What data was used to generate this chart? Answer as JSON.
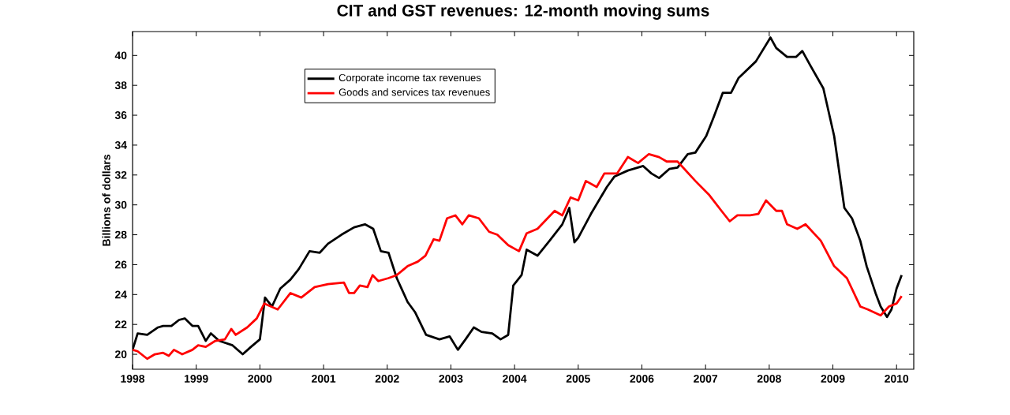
{
  "chart_data": {
    "type": "line",
    "title": "CIT and GST revenues: 12-month moving sums",
    "ylabel": "Billions of dollars",
    "xlim": [
      1998,
      2010.27
    ],
    "ylim": [
      19,
      41.6
    ],
    "xticks": [
      1998,
      1999,
      2000,
      2001,
      2002,
      2003,
      2004,
      2005,
      2006,
      2007,
      2008,
      2009,
      2010
    ],
    "yticks": [
      20,
      22,
      24,
      26,
      28,
      30,
      32,
      34,
      36,
      38,
      40
    ],
    "grid": false,
    "legend": "top left",
    "marker": "none",
    "line_style": "solid",
    "series": [
      {
        "name": "Corporate income tax revenues",
        "color": "#000000",
        "x": [
          1998.0,
          1998.08,
          1998.23,
          1998.4,
          1998.48,
          1998.61,
          1998.73,
          1998.82,
          1998.94,
          1999.03,
          1999.15,
          1999.23,
          1999.36,
          1999.57,
          1999.73,
          1999.86,
          2000.0,
          2000.08,
          2000.19,
          2000.32,
          2000.48,
          2000.61,
          2000.78,
          2000.94,
          2001.07,
          2001.28,
          2001.48,
          2001.65,
          2001.78,
          2001.9,
          2002.02,
          2002.15,
          2002.32,
          2002.44,
          2002.61,
          2002.82,
          2002.98,
          2003.11,
          2003.23,
          2003.36,
          2003.48,
          2003.65,
          2003.78,
          2003.9,
          2003.98,
          2004.11,
          2004.19,
          2004.36,
          2004.55,
          2004.75,
          2004.86,
          2004.94,
          2005.0,
          2005.2,
          2005.45,
          2005.57,
          2005.78,
          2006.02,
          2006.15,
          2006.27,
          2006.43,
          2006.56,
          2006.72,
          2006.84,
          2007.01,
          2007.13,
          2007.27,
          2007.4,
          2007.52,
          2007.79,
          2008.02,
          2008.11,
          2008.28,
          2008.42,
          2008.52,
          2008.65,
          2008.85,
          2009.02,
          2009.18,
          2009.3,
          2009.43,
          2009.53,
          2009.67,
          2009.75,
          2009.85,
          2009.92,
          2010.0,
          2010.08
        ],
        "values": [
          20.3,
          21.4,
          21.3,
          21.8,
          21.9,
          21.9,
          22.3,
          22.4,
          21.9,
          21.9,
          20.9,
          21.4,
          20.9,
          20.6,
          20.0,
          20.5,
          21.0,
          23.8,
          23.2,
          24.4,
          25.0,
          25.7,
          26.9,
          26.8,
          27.4,
          28.0,
          28.5,
          28.7,
          28.4,
          26.9,
          26.8,
          25.1,
          23.5,
          22.8,
          21.3,
          21.0,
          21.2,
          20.3,
          21.0,
          21.8,
          21.5,
          21.4,
          21.0,
          21.3,
          24.6,
          25.3,
          27.0,
          26.6,
          27.6,
          28.7,
          29.8,
          27.5,
          27.8,
          29.4,
          31.2,
          31.9,
          32.3,
          32.6,
          32.1,
          31.8,
          32.4,
          32.5,
          33.4,
          33.5,
          34.6,
          35.9,
          37.5,
          37.5,
          38.5,
          39.6,
          41.2,
          40.5,
          39.9,
          39.9,
          40.3,
          39.3,
          37.8,
          34.6,
          29.8,
          29.1,
          27.6,
          25.9,
          24.1,
          23.2,
          22.5,
          23.0,
          24.4,
          25.3
        ]
      },
      {
        "name": "Goods and services tax revenues",
        "color": "#ff0000",
        "x": [
          1998.0,
          1998.08,
          1998.23,
          1998.35,
          1998.48,
          1998.57,
          1998.65,
          1998.78,
          1998.94,
          1999.03,
          1999.15,
          1999.3,
          1999.45,
          1999.55,
          1999.62,
          1999.8,
          1999.95,
          2000.07,
          2000.28,
          2000.48,
          2000.65,
          2000.86,
          2001.07,
          2001.32,
          2001.4,
          2001.48,
          2001.57,
          2001.69,
          2001.77,
          2001.86,
          2002.02,
          2002.15,
          2002.32,
          2002.48,
          2002.6,
          2002.73,
          2002.82,
          2002.94,
          2003.07,
          2003.18,
          2003.28,
          2003.44,
          2003.6,
          2003.73,
          2003.9,
          2004.07,
          2004.19,
          2004.36,
          2004.63,
          2004.75,
          2004.88,
          2005.0,
          2005.12,
          2005.29,
          2005.41,
          2005.61,
          2005.78,
          2005.94,
          2006.11,
          2006.27,
          2006.39,
          2006.56,
          2006.84,
          2007.05,
          2007.25,
          2007.38,
          2007.5,
          2007.7,
          2007.83,
          2007.95,
          2008.11,
          2008.2,
          2008.28,
          2008.44,
          2008.57,
          2008.81,
          2009.02,
          2009.22,
          2009.43,
          2009.55,
          2009.75,
          2009.88,
          2010.0,
          2010.08
        ],
        "values": [
          20.3,
          20.2,
          19.7,
          20.0,
          20.1,
          19.9,
          20.3,
          20.0,
          20.3,
          20.6,
          20.5,
          20.9,
          21.0,
          21.7,
          21.3,
          21.8,
          22.4,
          23.4,
          23.0,
          24.1,
          23.8,
          24.5,
          24.7,
          24.8,
          24.1,
          24.1,
          24.6,
          24.5,
          25.3,
          24.9,
          25.1,
          25.3,
          25.9,
          26.2,
          26.6,
          27.7,
          27.6,
          29.1,
          29.3,
          28.7,
          29.3,
          29.1,
          28.2,
          28.0,
          27.3,
          26.9,
          28.1,
          28.4,
          29.6,
          29.3,
          30.5,
          30.3,
          31.6,
          31.2,
          32.1,
          32.1,
          33.2,
          32.8,
          33.4,
          33.2,
          32.9,
          32.9,
          31.6,
          30.7,
          29.6,
          28.9,
          29.3,
          29.3,
          29.4,
          30.3,
          29.6,
          29.6,
          28.7,
          28.4,
          28.7,
          27.6,
          25.9,
          25.1,
          23.2,
          23.0,
          22.6,
          23.2,
          23.4,
          23.9
        ]
      }
    ]
  }
}
